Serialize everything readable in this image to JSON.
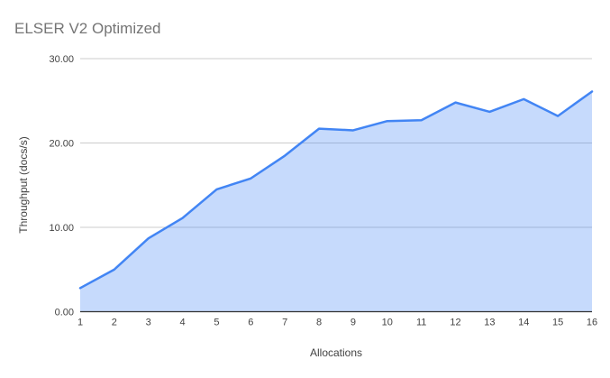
{
  "chart_data": {
    "type": "area",
    "title": "ELSER V2 Optimized",
    "xlabel": "Allocations",
    "ylabel": "Throughput (docs/s)",
    "categories": [
      "1",
      "2",
      "3",
      "4",
      "5",
      "6",
      "7",
      "8",
      "9",
      "10",
      "11",
      "12",
      "13",
      "14",
      "15",
      "16"
    ],
    "values": [
      2.8,
      5.0,
      8.7,
      11.1,
      14.5,
      15.8,
      18.5,
      21.7,
      21.5,
      22.6,
      22.7,
      24.8,
      23.7,
      25.2,
      23.2,
      26.1
    ],
    "ylim": [
      0,
      30
    ],
    "y_ticks": [
      {
        "value": 0,
        "label": "0.00"
      },
      {
        "value": 10,
        "label": "10.00"
      },
      {
        "value": 20,
        "label": "20.00"
      },
      {
        "value": 30,
        "label": "30.00"
      }
    ],
    "grid": true,
    "legend_position": "none",
    "colors": {
      "line": "#4285f4",
      "fill_opacity": 0.3,
      "grid": "#cccccc",
      "axis": "#333333",
      "title": "#757575",
      "tick_text": "#424242"
    }
  }
}
